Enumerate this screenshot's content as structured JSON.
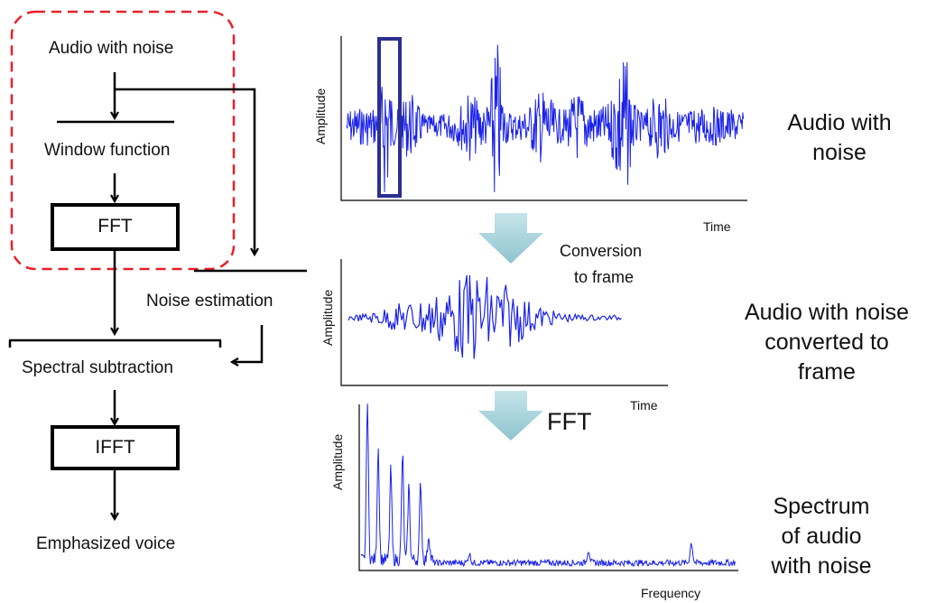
{
  "flowchart": {
    "audio_with_noise": "Audio with noise",
    "window_function": "Window function",
    "fft": "FFT",
    "noise_estimation": "Noise estimation",
    "spectral_subtraction": "Spectral subtraction",
    "ifft": "IFFT",
    "emphasized_voice": "Emphasized voice"
  },
  "plots": {
    "top": {
      "ylabel": "Amplitude",
      "xlabel": "Time"
    },
    "middle": {
      "ylabel": "Amplitude",
      "xlabel": "Time"
    },
    "bottom": {
      "ylabel": "Amplitude",
      "xlabel": "Frequency"
    }
  },
  "arrows": {
    "conversion_line1": "Conversion",
    "conversion_line2": "to frame",
    "fft": "FFT"
  },
  "right_labels": {
    "top": [
      "Audio with",
      "noise"
    ],
    "middle": [
      "Audio with noise",
      "converted to",
      "frame"
    ],
    "bottom": [
      "Spectrum",
      "of audio",
      "with noise"
    ]
  },
  "colors": {
    "signal": "#1a22e8",
    "highlight_box": "#2b2f8f",
    "dashed_region": "#e8202a",
    "down_arrow": "#a9d3db"
  }
}
